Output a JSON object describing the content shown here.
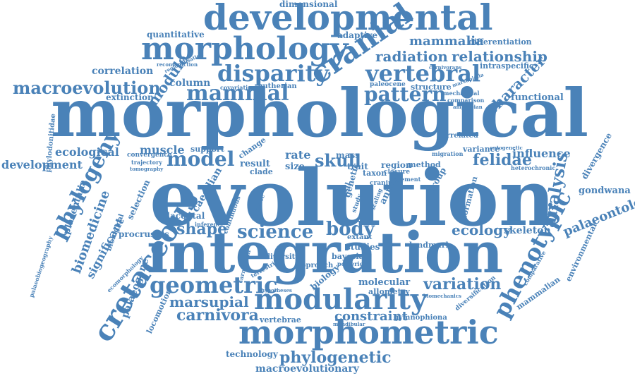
{
  "word_cloud": {
    "color": "#4a82b8",
    "words": [
      {
        "text": "evolution"
      },
      {
        "text": "morphological"
      },
      {
        "text": "integration"
      },
      {
        "text": "developmental"
      },
      {
        "text": "morphology"
      },
      {
        "text": "morphometric"
      },
      {
        "text": "modularity"
      },
      {
        "text": "cranial"
      },
      {
        "text": "cretaceous"
      },
      {
        "text": "phylogeny"
      },
      {
        "text": "disparity"
      },
      {
        "text": "vertebral"
      },
      {
        "text": "mammal"
      },
      {
        "text": "pattern"
      },
      {
        "text": "geometric"
      },
      {
        "text": "phenotypic"
      },
      {
        "text": "macroevolution"
      },
      {
        "text": "model"
      },
      {
        "text": "science"
      },
      {
        "text": "phylogenetic"
      },
      {
        "text": "carnivora"
      },
      {
        "text": "marsupial"
      },
      {
        "text": "shape"
      },
      {
        "text": "analysis"
      },
      {
        "text": "skull"
      },
      {
        "text": "body"
      },
      {
        "text": "variation"
      },
      {
        "text": "ecology"
      },
      {
        "text": "felidae"
      },
      {
        "text": "constraint"
      },
      {
        "text": "radiation"
      },
      {
        "text": "relationship"
      },
      {
        "text": "mammalia"
      },
      {
        "text": "character"
      },
      {
        "text": "module"
      },
      {
        "text": "biomedicine"
      },
      {
        "text": "palaeontology"
      },
      {
        "text": "macroevolutionary"
      },
      {
        "text": "ecological"
      },
      {
        "text": "development"
      },
      {
        "text": "muscle"
      },
      {
        "text": "column"
      },
      {
        "text": "correlation"
      },
      {
        "text": "quantitative"
      },
      {
        "text": "dimensional"
      },
      {
        "text": "adaptive"
      },
      {
        "text": "differentiation"
      },
      {
        "text": "intraspecific"
      },
      {
        "text": "extinction"
      },
      {
        "text": "functional"
      },
      {
        "text": "influence"
      },
      {
        "text": "skeleton"
      },
      {
        "text": "significant"
      },
      {
        "text": "palaeogene"
      },
      {
        "text": "placentalia"
      },
      {
        "text": "selection"
      },
      {
        "text": "gondwana"
      },
      {
        "text": "divergence"
      },
      {
        "text": "environmental"
      },
      {
        "text": "mammalian"
      },
      {
        "text": "technology"
      },
      {
        "text": "vertebrae"
      },
      {
        "text": "gymnophiona"
      },
      {
        "text": "molecular"
      },
      {
        "text": "allometry"
      },
      {
        "text": "procrustes"
      },
      {
        "text": "placental"
      },
      {
        "text": "caecilian"
      },
      {
        "text": "rate"
      },
      {
        "text": "size"
      },
      {
        "text": "mass"
      },
      {
        "text": "trait"
      },
      {
        "text": "region"
      },
      {
        "text": "method"
      },
      {
        "text": "group"
      },
      {
        "text": "variance"
      },
      {
        "text": "correlated"
      },
      {
        "text": "result"
      },
      {
        "text": "clade"
      },
      {
        "text": "support"
      },
      {
        "text": "change"
      },
      {
        "text": "structure"
      },
      {
        "text": "eutherian"
      },
      {
        "text": "covariation"
      },
      {
        "text": "paleocene"
      },
      {
        "text": "locomotion"
      },
      {
        "text": "biological"
      },
      {
        "text": "formation"
      },
      {
        "text": "studies"
      },
      {
        "text": "diversification"
      },
      {
        "text": "landmark"
      },
      {
        "text": "extant"
      },
      {
        "text": "diversity"
      },
      {
        "text": "approach"
      },
      {
        "text": "bayesian"
      },
      {
        "text": "posterior"
      },
      {
        "text": "comparison"
      },
      {
        "text": "mechanical"
      },
      {
        "text": "amphibian"
      },
      {
        "text": "taxon"
      },
      {
        "text": "cranium"
      },
      {
        "text": "closure"
      },
      {
        "text": "element"
      },
      {
        "text": "heterochronic"
      },
      {
        "text": "ontogenetic"
      },
      {
        "text": "migration"
      },
      {
        "text": "convergence"
      },
      {
        "text": "trajectory"
      },
      {
        "text": "tomography"
      },
      {
        "text": "reconstruction"
      },
      {
        "text": "regionalisation"
      },
      {
        "text": "carnivorans"
      },
      {
        "text": "marsupialia"
      },
      {
        "text": "mandibular"
      },
      {
        "text": "biomechanics"
      },
      {
        "text": "hypotheses"
      },
      {
        "text": "continuous"
      },
      {
        "text": "primate"
      },
      {
        "text": "fossil"
      },
      {
        "text": "genetic"
      },
      {
        "text": "study"
      },
      {
        "text": "scaling"
      },
      {
        "text": "animal"
      },
      {
        "text": "biology"
      },
      {
        "text": "phylodonitidae"
      },
      {
        "text": "palaeobiogeography"
      },
      {
        "text": "ecomorphology"
      },
      {
        "text": "inference"
      },
      {
        "text": "carnivoran"
      },
      {
        "text": "terrestrial"
      },
      {
        "text": "comparative"
      }
    ]
  }
}
